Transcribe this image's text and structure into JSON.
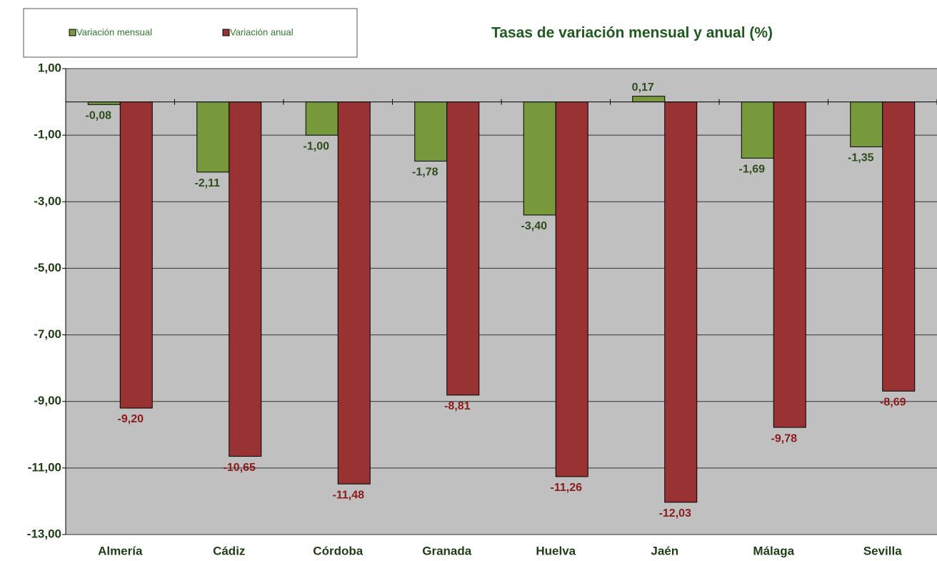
{
  "chart_data": {
    "type": "bar",
    "title": "Tasas de variación mensual y anual (%)",
    "categories": [
      "Almería",
      "Cádiz",
      "Córdoba",
      "Granada",
      "Huelva",
      "Jaén",
      "Málaga",
      "Sevilla"
    ],
    "series": [
      {
        "name": "Variación mensual",
        "color": "#77993b",
        "values": [
          -0.08,
          -2.11,
          -1.0,
          -1.78,
          -3.4,
          0.17,
          -1.69,
          -1.35
        ],
        "value_labels": [
          "-0,08",
          "-2,11",
          "-1,00",
          "-1,78",
          "-3,40",
          "0,17",
          "-1,69",
          "-1,35"
        ],
        "label_color": "#2e4d1a"
      },
      {
        "name": "Variación anual",
        "color": "#993333",
        "values": [
          -9.2,
          -10.65,
          -11.48,
          -8.81,
          -11.26,
          -12.03,
          -9.78,
          -8.69
        ],
        "value_labels": [
          "-9,20",
          "-10,65",
          "-11,48",
          "-8,81",
          "-11,26",
          "-12,03",
          "-9,78",
          "-8,69"
        ],
        "label_color": "#8b1a1a"
      }
    ],
    "ylim": [
      -13,
      1
    ],
    "yticks": [
      {
        "value": 1,
        "label": "1,00"
      },
      {
        "value": -1,
        "label": "-1,00"
      },
      {
        "value": -3,
        "label": "-3,00"
      },
      {
        "value": -5,
        "label": "-5,00"
      },
      {
        "value": -7,
        "label": "-7,00"
      },
      {
        "value": -9,
        "label": "-9,00"
      },
      {
        "value": -11,
        "label": "-11,00"
      },
      {
        "value": -13,
        "label": "-13,00"
      }
    ],
    "grid": true,
    "legend": "top-left"
  }
}
